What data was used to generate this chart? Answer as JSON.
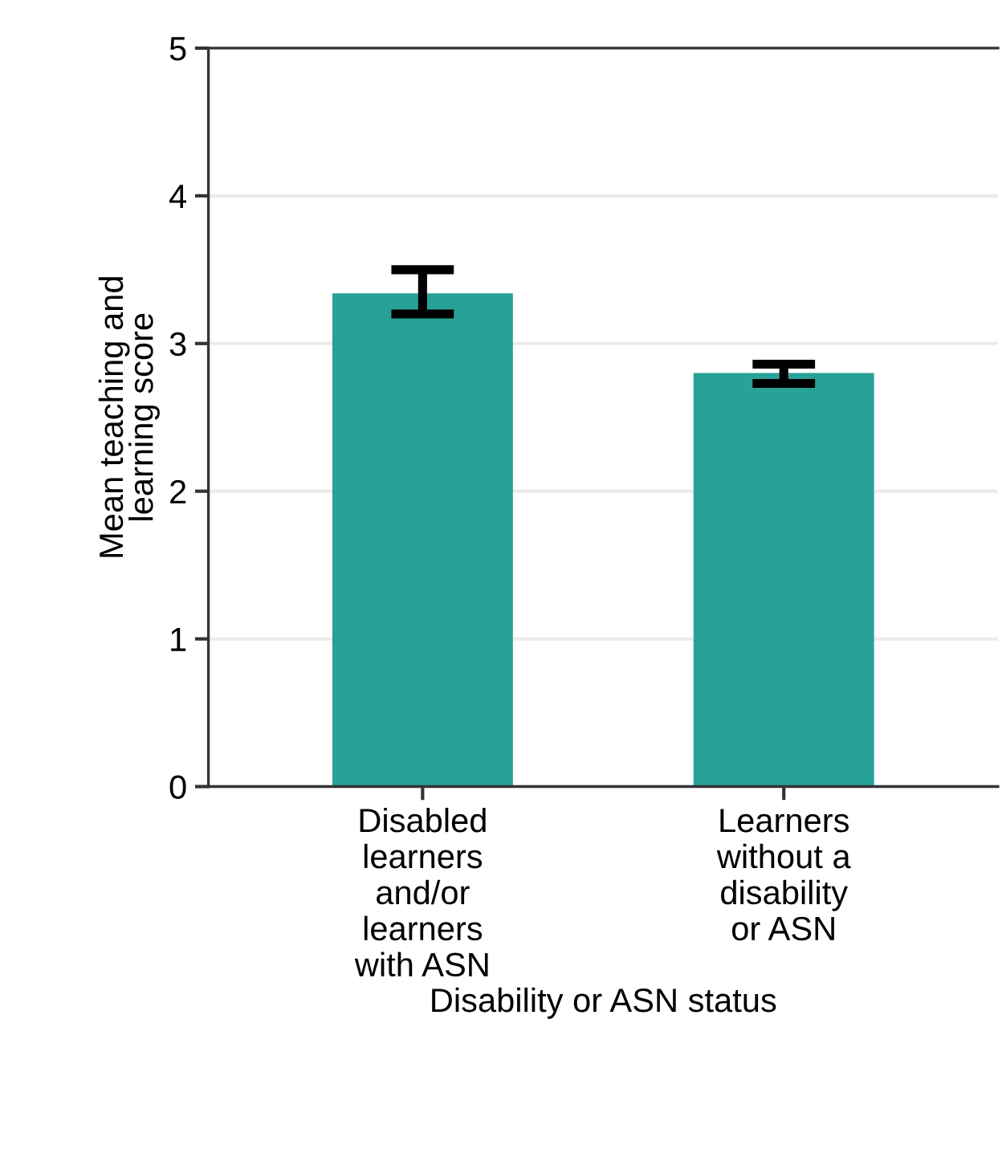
{
  "chart_data": {
    "type": "bar",
    "xlabel": "Disability or ASN status",
    "ylabel": "Mean teaching and\nlearning score",
    "categories": [
      "Disabled\nlearners\nand/or\nlearners\nwith ASN",
      "Learners\nwithout a\ndisability\nor ASN"
    ],
    "values": [
      3.34,
      2.8
    ],
    "color": "#28a297",
    "errors": [
      [
        3.2,
        3.5
      ],
      [
        2.73,
        2.86
      ]
    ],
    "ylim": [
      0,
      5
    ],
    "yticks": [
      0,
      1,
      2,
      3,
      4,
      5
    ],
    "grid": "y",
    "legend": false
  }
}
